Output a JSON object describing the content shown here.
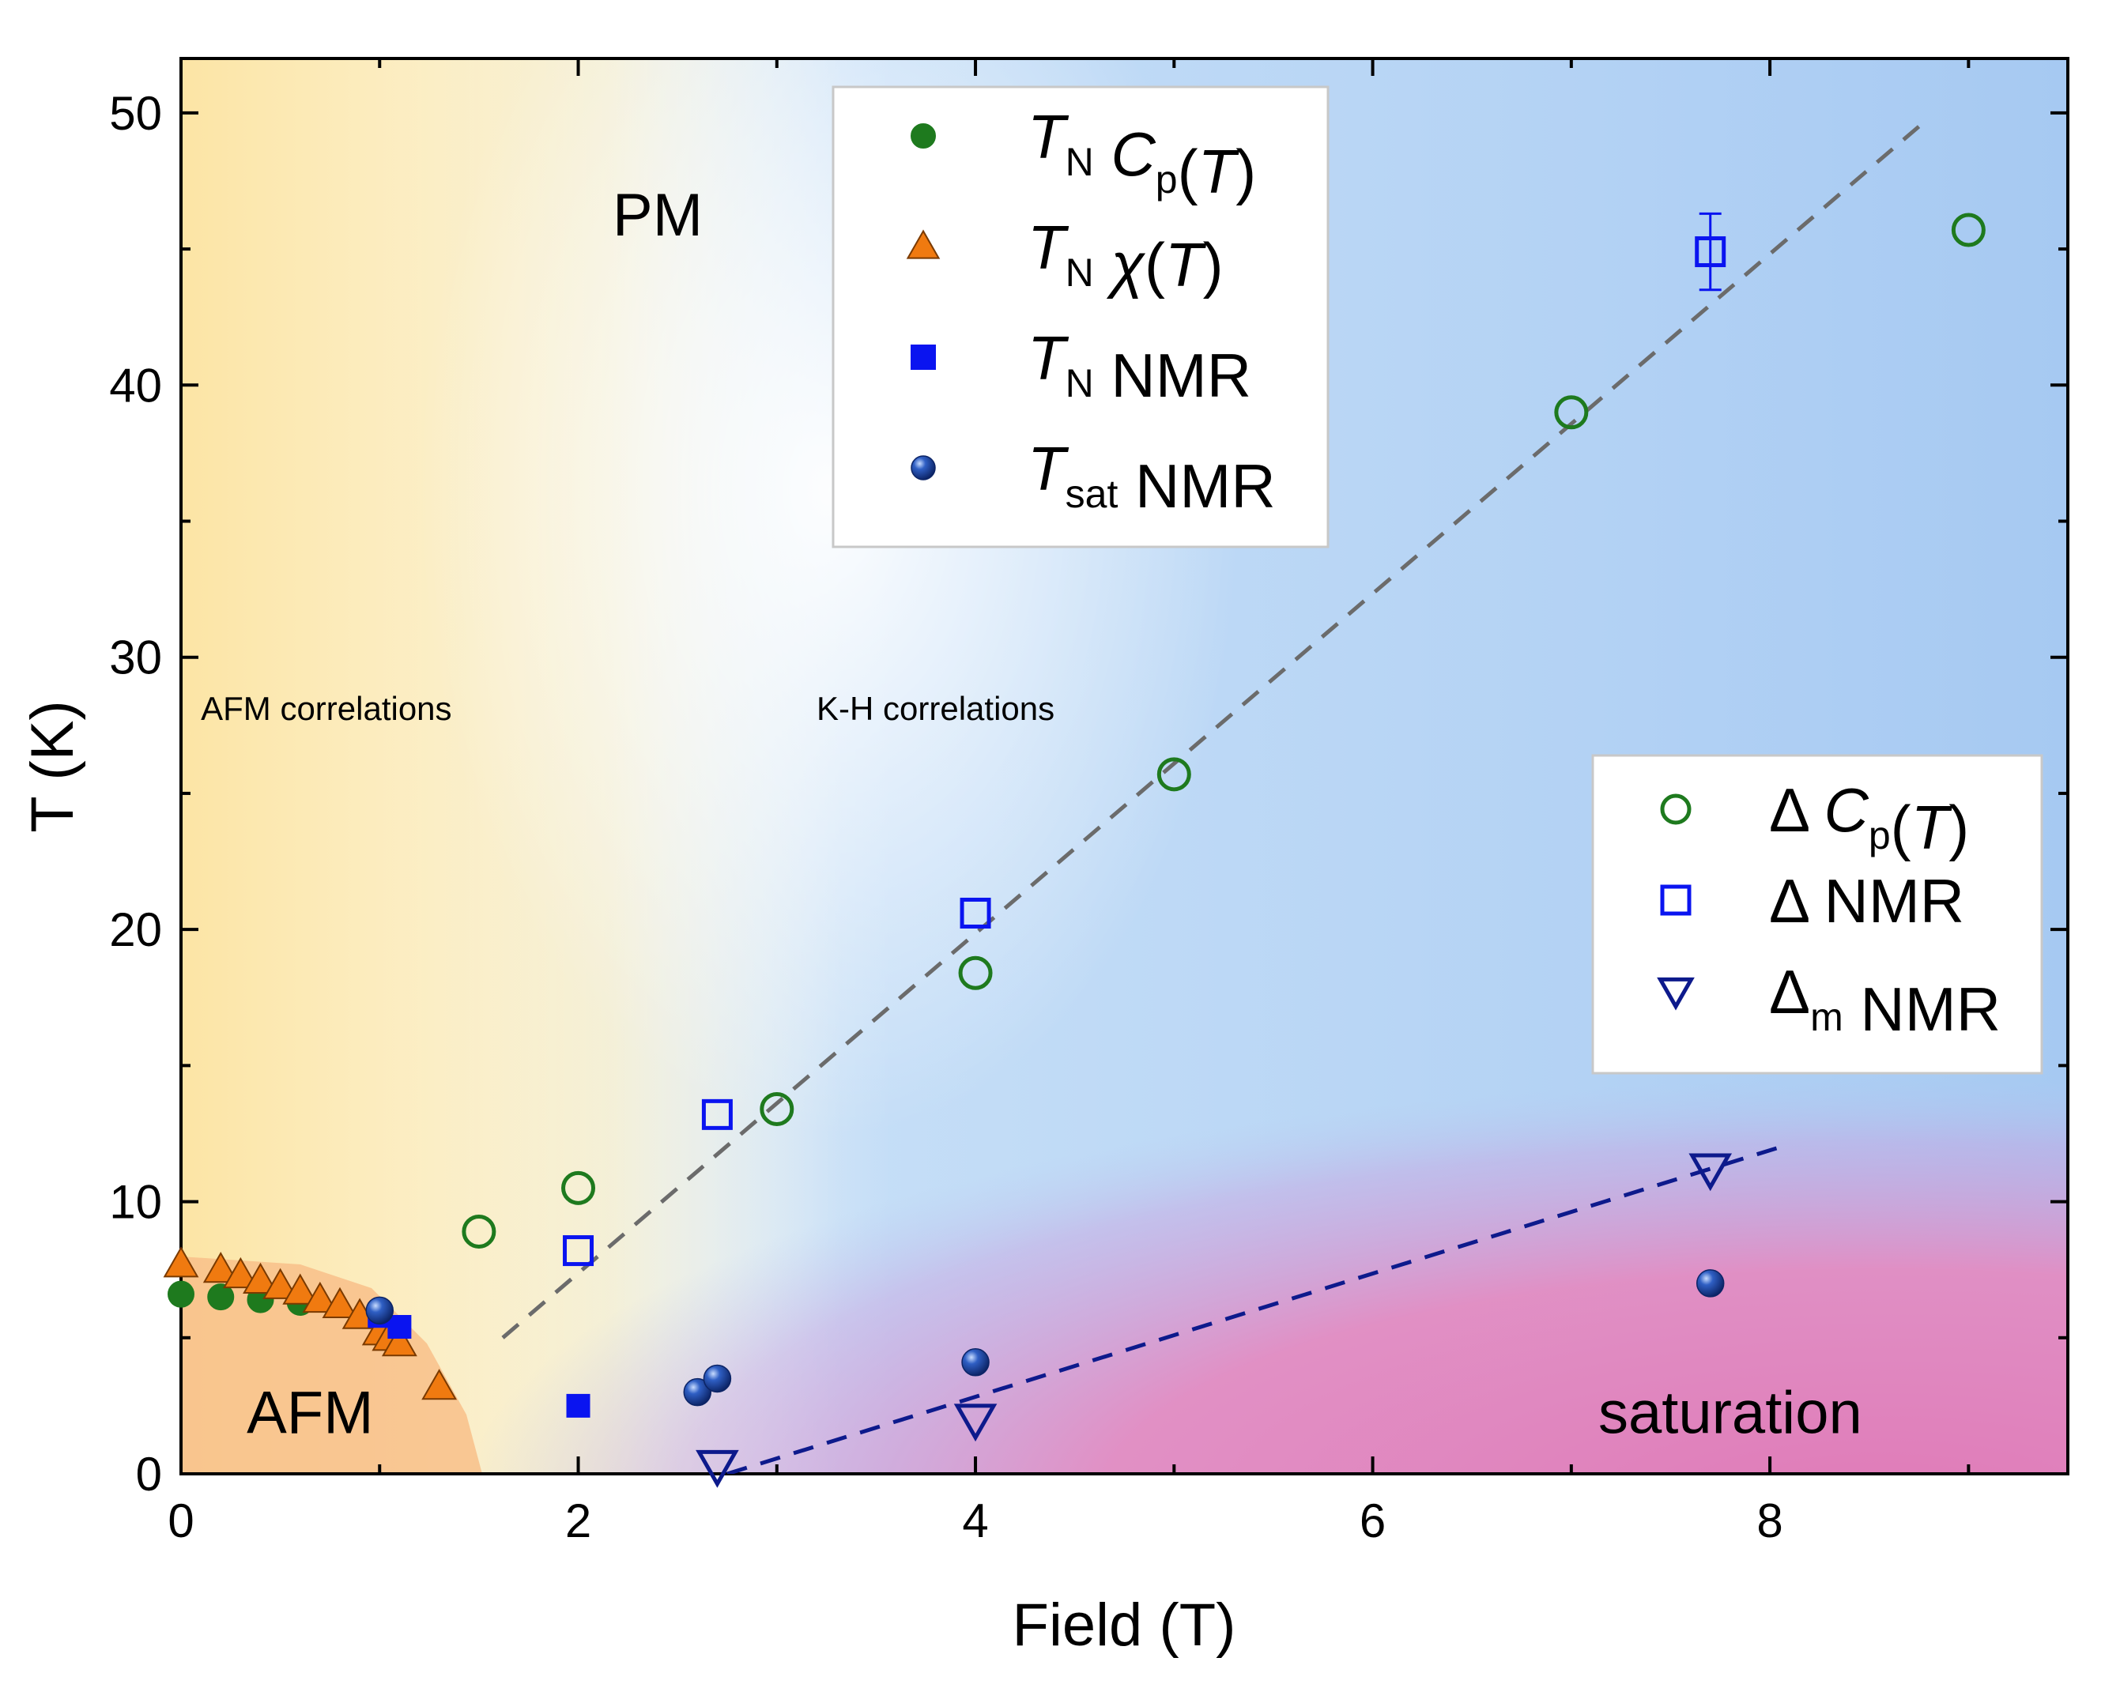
{
  "chart_data": {
    "type": "scatter",
    "xlabel": "Field (T)",
    "ylabel": "T (K)",
    "xlim": [
      0,
      9.5
    ],
    "ylim": [
      0,
      52
    ],
    "x_ticks": [
      "0",
      "2",
      "4",
      "6",
      "8"
    ],
    "y_ticks": [
      "0",
      "10",
      "20",
      "30",
      "40",
      "50"
    ],
    "region_labels": [
      {
        "text": "PM",
        "x": 2.4,
        "y": 45.5,
        "size": "large"
      },
      {
        "text": "AFM",
        "x": 0.65,
        "y": 1.5,
        "size": "large"
      },
      {
        "text": "saturation",
        "x": 7.8,
        "y": 1.5,
        "size": "large"
      },
      {
        "text": "AFM correlations",
        "x": 0.1,
        "y": 27.7,
        "size": "small"
      },
      {
        "text": "K-H correlations",
        "x": 3.2,
        "y": 27.7,
        "size": "small"
      }
    ],
    "legend_top": {
      "position": "top-center",
      "entries": [
        {
          "series": "TN_Cp",
          "main": "T",
          "sub": "N",
          "suffix": " C",
          "suffix_sub": "p",
          "tail": "(T)"
        },
        {
          "series": "TN_chi",
          "main": "T",
          "sub": "N",
          "suffix": " χ(T)",
          "suffix_sub": "",
          "tail": ""
        },
        {
          "series": "TN_NMR",
          "main": "T",
          "sub": "N",
          "suffix": " NMR",
          "suffix_sub": "",
          "tail": ""
        },
        {
          "series": "Tsat_NMR",
          "main": "T",
          "sub": "sat",
          "suffix": " NMR",
          "suffix_sub": "",
          "tail": ""
        }
      ]
    },
    "legend_right": {
      "position": "center-right",
      "entries": [
        {
          "series": "Delta_Cp",
          "main": "Δ",
          "sub": "",
          "suffix": "  C",
          "suffix_sub": "p",
          "tail": "(T)"
        },
        {
          "series": "Delta_NMR",
          "main": "Δ",
          "sub": "",
          "suffix": "  NMR",
          "suffix_sub": "",
          "tail": ""
        },
        {
          "series": "Delta_m_NMR",
          "main": "Δ",
          "sub": "m",
          "suffix": "  NMR",
          "suffix_sub": "",
          "tail": ""
        }
      ]
    },
    "series": [
      {
        "name": "TN_Cp",
        "marker": "circle",
        "filled": true,
        "color": "#1e7a1e",
        "x": [
          0,
          0.2,
          0.4,
          0.6,
          1.0
        ],
        "y": [
          6.6,
          6.5,
          6.4,
          6.3,
          6.0
        ]
      },
      {
        "name": "TN_chi",
        "marker": "triangle-up",
        "filled": true,
        "color": "#f07a10",
        "x": [
          0,
          0.2,
          0.3,
          0.4,
          0.5,
          0.6,
          0.7,
          0.8,
          0.9,
          1.0,
          1.05,
          1.1,
          1.3
        ],
        "y": [
          7.7,
          7.5,
          7.3,
          7.1,
          6.9,
          6.7,
          6.4,
          6.2,
          5.8,
          5.2,
          5.0,
          4.8,
          3.2
        ]
      },
      {
        "name": "TN_NMR",
        "marker": "square",
        "filled": true,
        "color": "#0a14f0",
        "x": [
          1.0,
          1.1,
          2.0
        ],
        "y": [
          5.8,
          5.4,
          2.5
        ]
      },
      {
        "name": "Tsat_NMR",
        "marker": "sphere",
        "filled": true,
        "color": "#1a3d9e",
        "x": [
          1.0,
          2.6,
          2.7,
          4.0,
          7.7
        ],
        "y": [
          6.0,
          3.0,
          3.5,
          4.1,
          7.0
        ]
      },
      {
        "name": "Delta_Cp",
        "marker": "circle",
        "filled": false,
        "color": "#1e7a1e",
        "x": [
          1.5,
          2.0,
          3.0,
          4.0,
          5.0,
          7.0,
          9.0
        ],
        "y": [
          8.9,
          10.5,
          13.4,
          18.4,
          25.7,
          39.0,
          45.7
        ]
      },
      {
        "name": "Delta_NMR",
        "marker": "square",
        "filled": false,
        "color": "#0a14f0",
        "x": [
          2.0,
          2.7,
          4.0,
          7.7
        ],
        "y": [
          8.2,
          13.2,
          20.6,
          44.9
        ],
        "yerr": [
          0,
          0,
          0,
          1.4
        ]
      },
      {
        "name": "Delta_m_NMR",
        "marker": "triangle-down",
        "filled": false,
        "color": "#0d1a8c",
        "x": [
          2.7,
          4.0,
          7.7
        ],
        "y": [
          0.3,
          2.0,
          11.2
        ]
      }
    ],
    "fit_lines": [
      {
        "name": "fit-line-delta",
        "color": "#6b6b6b",
        "x": [
          1.62,
          8.75
        ],
        "y": [
          5.0,
          49.5
        ]
      },
      {
        "name": "fit-line-delta-m",
        "color": "#0d1a8c",
        "x": [
          2.75,
          8.05
        ],
        "y": [
          0.0,
          12.0
        ]
      }
    ]
  }
}
